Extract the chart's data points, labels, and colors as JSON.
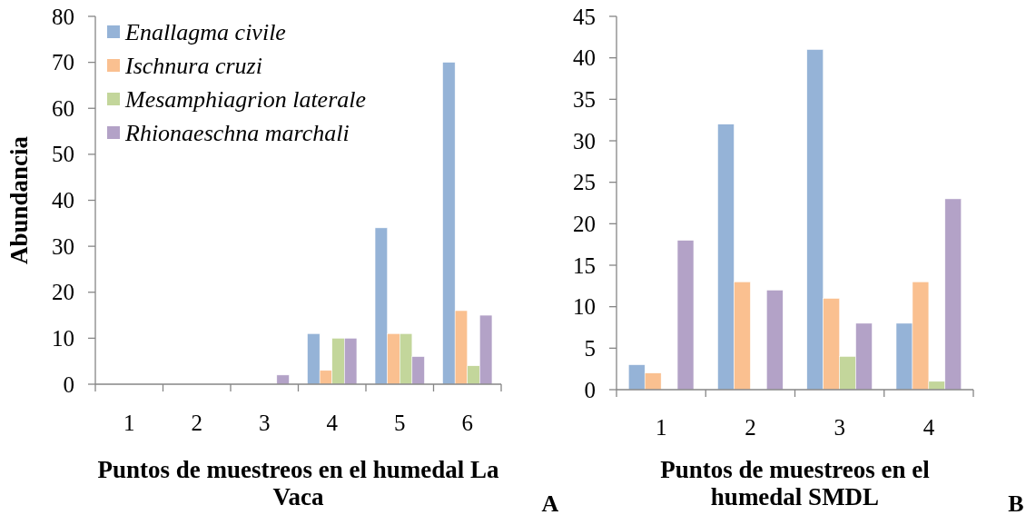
{
  "chart_data": [
    {
      "type": "bar",
      "categories": [
        "1",
        "2",
        "3",
        "4",
        "5",
        "6"
      ],
      "series": [
        {
          "name": "Enallagma civile",
          "color": "#95b3d7",
          "values": [
            0,
            0,
            0,
            11,
            34,
            70
          ]
        },
        {
          "name": "Ischnura cruzi",
          "color": "#fac090",
          "values": [
            0,
            0,
            0,
            3,
            11,
            16
          ]
        },
        {
          "name": "Mesamphiagrion laterale",
          "color": "#c3d69b",
          "values": [
            0,
            0,
            0,
            10,
            11,
            4
          ]
        },
        {
          "name": "Rhionaeschna marchali",
          "color": "#b3a2c7",
          "values": [
            0,
            0,
            2,
            10,
            6,
            15
          ]
        }
      ],
      "ylim": [
        0,
        80
      ],
      "yticks": [
        0,
        10,
        20,
        30,
        40,
        50,
        60,
        70,
        80
      ],
      "xlabel": "Puntos de muestreos en el humedal La Vaca",
      "ylabel": "Abundancia",
      "legend": "top left",
      "annotations": [
        "A"
      ]
    },
    {
      "type": "bar",
      "categories": [
        "1",
        "2",
        "3",
        "4"
      ],
      "series": [
        {
          "color": "#95b3d7",
          "values": [
            3,
            32,
            41,
            8
          ]
        },
        {
          "color": "#fac090",
          "values": [
            2,
            13,
            11,
            13
          ]
        },
        {
          "color": "#c3d69b",
          "values": [
            0,
            0,
            4,
            1
          ]
        },
        {
          "color": "#b3a2c7",
          "values": [
            18,
            12,
            8,
            23
          ]
        }
      ],
      "ylim": [
        0,
        45
      ],
      "yticks": [
        0,
        5,
        10,
        15,
        20,
        25,
        30,
        35,
        40,
        45
      ],
      "xlabel": "Puntos de muestreos en el humedal SMDL",
      "annotations": [
        "B"
      ]
    }
  ]
}
